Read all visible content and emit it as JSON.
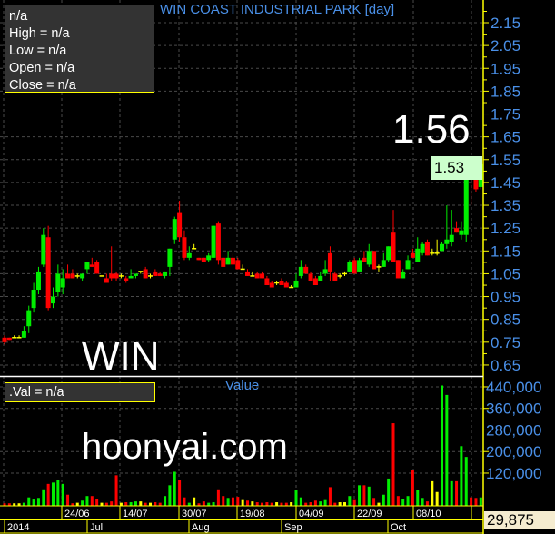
{
  "header": {
    "title": "WIN COAST INDUSTRIAL PARK [day]"
  },
  "infobox": {
    "name": "n/a",
    "high": "High  = n/a",
    "low": "Low  = n/a",
    "open": "Open  = n/a",
    "close": "Close  = n/a"
  },
  "overlays": {
    "last_big": "1.56",
    "symbol": "WIN",
    "watermark": "hoonyai.com"
  },
  "volume_panel": {
    "title": "Value",
    "info": ".Val   = n/a",
    "last_value": "29,875"
  },
  "price_panel": {
    "last_price": "1.53"
  },
  "colors": {
    "up": "#00ee00",
    "down": "#ff0000",
    "unchanged": "#ffff00",
    "axis_text": "#4a90e8",
    "axis_line": "#ffff00"
  },
  "chart_data": [
    {
      "type": "candlestick",
      "ylim": [
        0.6,
        2.2
      ],
      "y_ticks": [
        "2.15",
        "2.05",
        "1.95",
        "1.85",
        "1.75",
        "1.65",
        "1.55",
        "1.45",
        "1.35",
        "1.25",
        "1.15",
        "1.05",
        "0.95",
        "0.85",
        "0.75",
        "0.65"
      ],
      "x_ticks": [
        "24/06",
        "14/07",
        "30/07",
        "19/08",
        "04/09",
        "22/09",
        "08/10"
      ],
      "x_months": [
        "2014",
        "Jul",
        "Aug",
        "Sep",
        "Oct"
      ],
      "grid": true,
      "ohlc": [
        [
          0.77,
          0.78,
          0.74,
          0.75
        ],
        [
          0.77,
          0.77,
          0.76,
          0.76
        ],
        [
          0.77,
          0.78,
          0.77,
          0.77
        ],
        [
          0.77,
          0.78,
          0.77,
          0.77
        ],
        [
          0.77,
          0.82,
          0.77,
          0.8
        ],
        [
          0.82,
          0.91,
          0.79,
          0.89
        ],
        [
          0.9,
          1.01,
          0.88,
          0.98
        ],
        [
          0.98,
          1.08,
          0.96,
          1.06
        ],
        [
          1.09,
          1.25,
          1.08,
          1.22
        ],
        [
          1.21,
          1.26,
          0.89,
          0.9
        ],
        [
          0.92,
          0.99,
          0.9,
          0.95
        ],
        [
          0.97,
          1.09,
          0.95,
          1.05
        ],
        [
          0.99,
          1.07,
          0.96,
          1.03
        ],
        [
          1.05,
          1.09,
          1.03,
          1.03
        ],
        [
          1.05,
          1.07,
          1.03,
          1.03
        ],
        [
          1.04,
          1.05,
          1.03,
          1.04
        ],
        [
          1.03,
          1.05,
          1.02,
          1.05
        ],
        [
          1.07,
          1.1,
          1.05,
          1.1
        ],
        [
          1.09,
          1.12,
          1.08,
          1.08
        ],
        [
          1.1,
          1.11,
          1.05,
          1.05
        ],
        [
          1.04,
          1.04,
          1.04,
          1.04
        ],
        [
          1.03,
          1.05,
          1.02,
          1.01
        ],
        [
          1.05,
          1.17,
          1.02,
          1.03
        ],
        [
          1.05,
          1.06,
          1.02,
          1.03
        ],
        [
          1.04,
          1.05,
          1.03,
          1.04
        ],
        [
          1.03,
          1.04,
          1.01,
          1.02
        ],
        [
          1.03,
          1.07,
          1.03,
          1.04
        ],
        [
          1.04,
          1.05,
          1.03,
          1.05
        ],
        [
          1.06,
          1.06,
          1.05,
          1.06
        ],
        [
          1.07,
          1.08,
          1.03,
          1.03
        ],
        [
          1.04,
          1.05,
          1.03,
          1.04
        ],
        [
          1.06,
          1.07,
          1.04,
          1.04
        ],
        [
          1.05,
          1.06,
          1.04,
          1.04
        ],
        [
          1.04,
          1.06,
          1.03,
          1.06
        ],
        [
          1.08,
          1.16,
          1.04,
          1.16
        ],
        [
          1.2,
          1.3,
          1.18,
          1.29
        ],
        [
          1.32,
          1.37,
          1.19,
          1.21
        ],
        [
          1.21,
          1.24,
          1.11,
          1.12
        ],
        [
          1.12,
          1.17,
          1.11,
          1.14
        ],
        [
          1.16,
          1.18,
          1.16,
          1.16
        ],
        [
          1.12,
          1.12,
          1.11,
          1.11
        ],
        [
          1.12,
          1.12,
          1.1,
          1.1
        ],
        [
          1.11,
          1.14,
          1.1,
          1.13
        ],
        [
          1.12,
          1.26,
          1.12,
          1.26
        ],
        [
          1.27,
          1.28,
          1.09,
          1.11
        ],
        [
          1.12,
          1.12,
          1.08,
          1.08
        ],
        [
          1.09,
          1.15,
          1.09,
          1.12
        ],
        [
          1.12,
          1.14,
          1.09,
          1.09
        ],
        [
          1.11,
          1.12,
          1.07,
          1.07
        ],
        [
          1.07,
          1.09,
          1.07,
          1.07
        ],
        [
          1.06,
          1.07,
          1.04,
          1.04
        ],
        [
          1.04,
          1.06,
          1.04,
          1.04
        ],
        [
          1.05,
          1.06,
          1.03,
          1.03
        ],
        [
          1.05,
          1.06,
          1.03,
          1.03
        ],
        [
          1.03,
          1.04,
          1.0,
          1.0
        ],
        [
          1.01,
          1.02,
          0.99,
          0.99
        ],
        [
          1.01,
          1.02,
          1.0,
          1.01
        ],
        [
          1.02,
          1.03,
          1.0,
          1.0
        ],
        [
          1.01,
          1.02,
          0.99,
          0.99
        ],
        [
          0.99,
          1.0,
          0.99,
          0.99
        ],
        [
          0.99,
          1.05,
          0.99,
          1.02
        ],
        [
          1.04,
          1.11,
          1.03,
          1.08
        ],
        [
          1.08,
          1.09,
          1.05,
          1.05
        ],
        [
          1.05,
          1.06,
          1.02,
          1.02
        ],
        [
          1.03,
          1.04,
          1.0,
          1.0
        ],
        [
          1.02,
          1.06,
          1.02,
          1.04
        ],
        [
          1.05,
          1.11,
          1.04,
          1.07
        ],
        [
          1.14,
          1.17,
          1.02,
          1.06
        ],
        [
          1.05,
          1.06,
          1.02,
          1.02
        ],
        [
          1.04,
          1.05,
          1.03,
          1.04
        ],
        [
          1.05,
          1.06,
          1.04,
          1.05
        ],
        [
          1.06,
          1.11,
          1.06,
          1.1
        ],
        [
          1.11,
          1.12,
          1.05,
          1.05
        ],
        [
          1.06,
          1.12,
          1.06,
          1.11
        ],
        [
          1.12,
          1.15,
          1.1,
          1.1
        ],
        [
          1.09,
          1.18,
          1.08,
          1.15
        ],
        [
          1.15,
          1.15,
          1.07,
          1.07
        ],
        [
          1.08,
          1.09,
          1.06,
          1.08
        ],
        [
          1.08,
          1.14,
          1.08,
          1.11
        ],
        [
          1.11,
          1.17,
          1.1,
          1.17
        ],
        [
          1.23,
          1.33,
          1.1,
          1.1
        ],
        [
          1.11,
          1.11,
          1.03,
          1.03
        ],
        [
          1.03,
          1.07,
          1.03,
          1.06
        ],
        [
          1.07,
          1.13,
          1.07,
          1.11
        ],
        [
          1.14,
          1.16,
          1.12,
          1.12
        ],
        [
          1.1,
          1.21,
          1.1,
          1.16
        ],
        [
          1.14,
          1.19,
          1.13,
          1.18
        ],
        [
          1.19,
          1.2,
          1.13,
          1.13
        ],
        [
          1.14,
          1.16,
          1.13,
          1.14
        ],
        [
          1.14,
          1.2,
          1.13,
          1.14
        ],
        [
          1.15,
          1.19,
          1.15,
          1.18
        ],
        [
          1.18,
          1.35,
          1.16,
          1.2
        ],
        [
          1.19,
          1.33,
          1.17,
          1.22
        ],
        [
          1.25,
          1.28,
          1.23,
          1.23
        ],
        [
          1.22,
          1.28,
          1.2,
          1.24
        ],
        [
          1.22,
          1.5,
          1.19,
          1.49
        ],
        [
          1.51,
          1.56,
          1.35,
          1.48
        ],
        [
          1.47,
          1.5,
          1.41,
          1.42
        ],
        [
          1.43,
          1.53,
          1.42,
          1.53
        ]
      ]
    },
    {
      "type": "bar",
      "title": "Value",
      "ylim": [
        0,
        480000
      ],
      "y_ticks": [
        "440,000",
        "360,000",
        "280,000",
        "200,000",
        "120,000"
      ],
      "values": [
        8000,
        8000,
        8000,
        8000,
        10000,
        30000,
        22000,
        28000,
        60000,
        80000,
        85000,
        95000,
        80000,
        40000,
        8000,
        10000,
        18000,
        35000,
        35000,
        25000,
        10000,
        10000,
        15000,
        112000,
        10000,
        12000,
        12000,
        15000,
        15000,
        10000,
        10000,
        12000,
        10000,
        35000,
        75000,
        125000,
        95000,
        30000,
        10000,
        30000,
        8000,
        15000,
        10000,
        12000,
        60000,
        35000,
        28000,
        30000,
        32000,
        20000,
        18000,
        15000,
        12000,
        10000,
        12000,
        10000,
        12000,
        10000,
        10000,
        12000,
        58000,
        30000,
        10000,
        12000,
        18000,
        15000,
        20000,
        68000,
        10000,
        12000,
        12000,
        35000,
        20000,
        75000,
        75000,
        70000,
        28000,
        10000,
        40000,
        100000,
        305000,
        35000,
        25000,
        35000,
        130000,
        58000,
        28000,
        15000,
        90000,
        50000,
        445000,
        410000,
        90000,
        90000,
        220000,
        180000,
        30000,
        28000,
        29875
      ]
    }
  ]
}
